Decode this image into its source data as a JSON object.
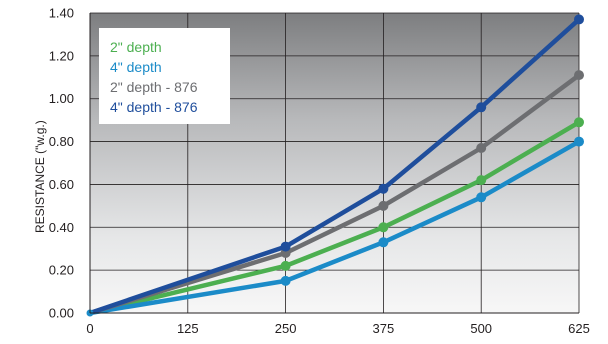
{
  "chart_data": {
    "type": "line",
    "title": "",
    "xlabel": "",
    "ylabel": "RESISTANCE (\"w.g.)",
    "x": [
      0,
      250,
      375,
      500,
      625
    ],
    "x_ticks": [
      "0",
      "125",
      "250",
      "375",
      "500",
      "625"
    ],
    "x_tick_values": [
      0,
      125,
      250,
      375,
      500,
      625
    ],
    "y_ticks": [
      "0.00",
      "0.20",
      "0.40",
      "0.60",
      "0.80",
      "1.00",
      "1.20",
      "1.40"
    ],
    "y_tick_values": [
      0,
      0.2,
      0.4,
      0.6,
      0.8,
      1.0,
      1.2,
      1.4
    ],
    "xlim": [
      0,
      625
    ],
    "ylim": [
      0,
      1.4
    ],
    "grid": true,
    "legend_position": "top-left",
    "series": [
      {
        "name": "2\" depth",
        "color": "#4caf50",
        "values": [
          0,
          0.22,
          0.4,
          0.62,
          0.89
        ]
      },
      {
        "name": "4\" depth",
        "color": "#1b8bc8",
        "values": [
          0,
          0.15,
          0.33,
          0.54,
          0.8
        ]
      },
      {
        "name": "2\" depth - 876",
        "color": "#6d6e71",
        "values": [
          0,
          0.28,
          0.5,
          0.77,
          1.11
        ]
      },
      {
        "name": "4\" depth - 876",
        "color": "#1f4e9c",
        "values": [
          0,
          0.31,
          0.58,
          0.96,
          1.37
        ]
      }
    ]
  }
}
